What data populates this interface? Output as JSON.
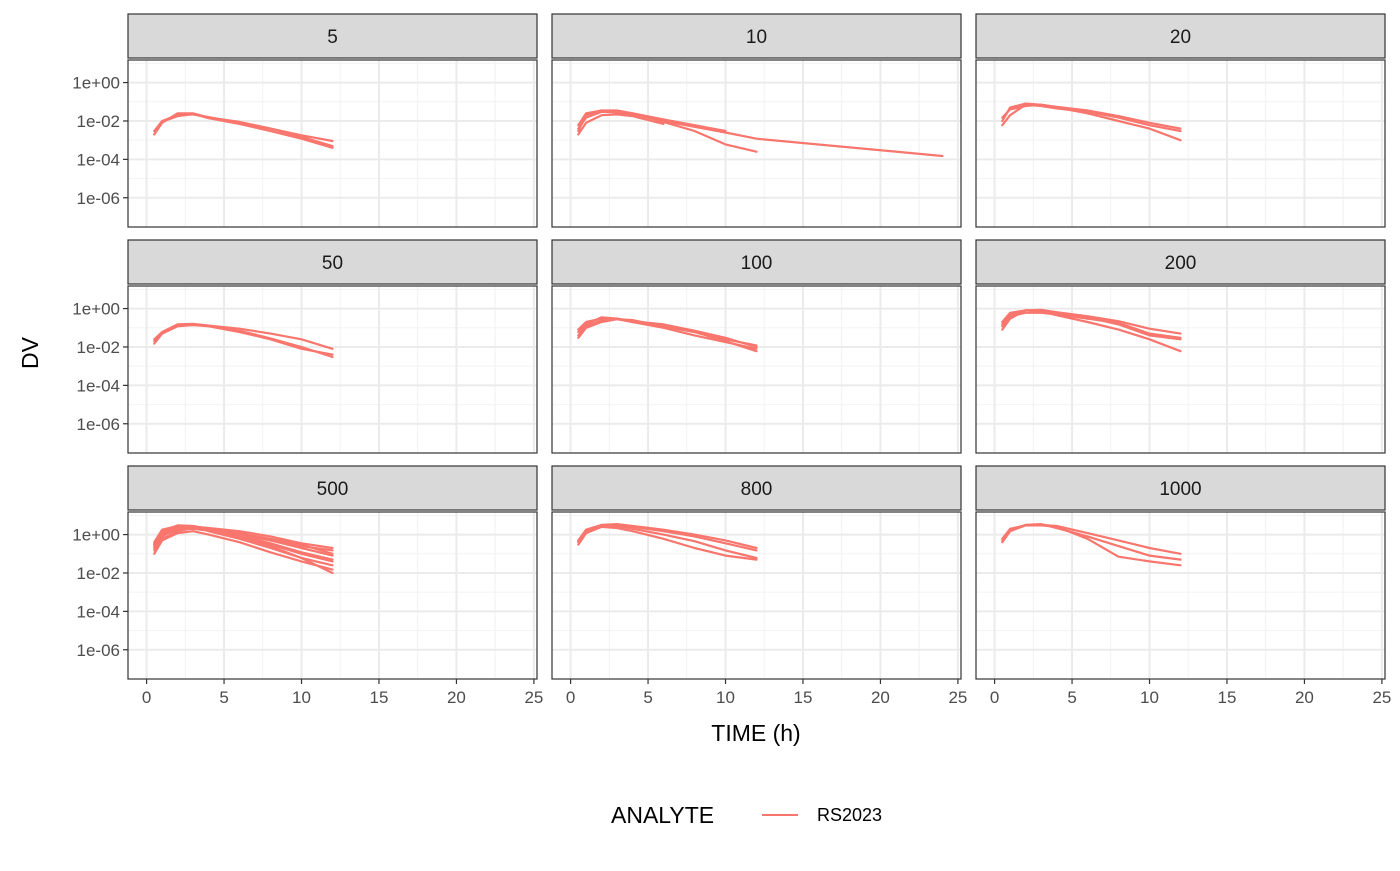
{
  "chart_data": {
    "type": "line",
    "facet_type": "wrap",
    "layout": {
      "rows": 3,
      "cols": 3
    },
    "xlabel": "TIME (h)",
    "ylabel": "DV",
    "y_scale": "log10",
    "xlim": [
      -1.2,
      25.2
    ],
    "ylim": [
      3e-08,
      15
    ],
    "x_ticks": [
      0,
      5,
      10,
      15,
      20,
      25
    ],
    "x_tick_labels": [
      "0",
      "5",
      "10",
      "15",
      "20",
      "25"
    ],
    "y_ticks": [
      1e-06,
      0.0001,
      0.01,
      1
    ],
    "y_tick_labels": [
      "1e-06",
      "1e-04",
      "1e-02",
      "1e+00"
    ],
    "grid": true,
    "theme": "bw",
    "series_color": "#F8766D",
    "legend": {
      "title": "ANALYTE",
      "position": "bottom",
      "entries": [
        {
          "label": "RS2023",
          "color": "#F8766D"
        }
      ]
    },
    "facets": [
      {
        "label": "5",
        "lines": [
          {
            "x": [
              0.5,
              1,
              2,
              3,
              4,
              6,
              8,
              10,
              12
            ],
            "y": [
              0.002,
              0.008,
              0.025,
              0.025,
              0.015,
              0.009,
              0.004,
              0.0018,
              0.0009
            ]
          },
          {
            "x": [
              0.5,
              1,
              2,
              3,
              4,
              6,
              8,
              10,
              12
            ],
            "y": [
              0.003,
              0.01,
              0.02,
              0.022,
              0.016,
              0.008,
              0.004,
              0.0015,
              0.0005
            ]
          },
          {
            "x": [
              0.5,
              1,
              2,
              3,
              4,
              6,
              8,
              10,
              12
            ],
            "y": [
              0.002,
              0.009,
              0.018,
              0.023,
              0.014,
              0.007,
              0.003,
              0.0012,
              0.0004
            ]
          }
        ]
      },
      {
        "label": "10",
        "lines": [
          {
            "x": [
              0.5,
              1,
              2,
              3,
              4,
              6,
              8,
              10,
              12,
              24
            ],
            "y": [
              0.004,
              0.015,
              0.03,
              0.028,
              0.022,
              0.01,
              0.005,
              0.0025,
              0.0012,
              0.00015
            ]
          },
          {
            "x": [
              0.5,
              1,
              2,
              3,
              4,
              6,
              8,
              10,
              12
            ],
            "y": [
              0.003,
              0.02,
              0.035,
              0.03,
              0.025,
              0.009,
              0.003,
              0.0006,
              0.00025
            ]
          },
          {
            "x": [
              0.5,
              1,
              2,
              3,
              4,
              6,
              8,
              10
            ],
            "y": [
              0.006,
              0.025,
              0.035,
              0.035,
              0.025,
              0.012,
              0.006,
              0.003
            ]
          },
          {
            "x": [
              0.5,
              1,
              2,
              3,
              4,
              6
            ],
            "y": [
              0.002,
              0.008,
              0.02,
              0.022,
              0.018,
              0.007
            ]
          }
        ]
      },
      {
        "label": "20",
        "lines": [
          {
            "x": [
              0.5,
              1,
              2,
              3,
              4,
              6,
              8,
              10,
              12
            ],
            "y": [
              0.006,
              0.02,
              0.07,
              0.06,
              0.045,
              0.03,
              0.015,
              0.006,
              0.003
            ]
          },
          {
            "x": [
              0.5,
              1,
              2,
              3,
              4,
              6,
              8,
              10,
              12
            ],
            "y": [
              0.01,
              0.05,
              0.08,
              0.07,
              0.05,
              0.025,
              0.01,
              0.004,
              0.001
            ]
          },
          {
            "x": [
              0.5,
              1,
              2,
              3,
              4,
              6,
              8,
              10,
              12
            ],
            "y": [
              0.015,
              0.04,
              0.06,
              0.07,
              0.055,
              0.035,
              0.018,
              0.008,
              0.004
            ]
          }
        ]
      },
      {
        "label": "50",
        "lines": [
          {
            "x": [
              0.5,
              1,
              2,
              3,
              4,
              6,
              8,
              10,
              12
            ],
            "y": [
              0.015,
              0.05,
              0.14,
              0.14,
              0.12,
              0.06,
              0.025,
              0.008,
              0.004
            ]
          },
          {
            "x": [
              0.5,
              1,
              2,
              3,
              4,
              6,
              8,
              10,
              12
            ],
            "y": [
              0.025,
              0.06,
              0.15,
              0.16,
              0.13,
              0.07,
              0.028,
              0.01,
              0.003
            ]
          },
          {
            "x": [
              0.5,
              1,
              2,
              3,
              4,
              6,
              8,
              10,
              12
            ],
            "y": [
              0.02,
              0.05,
              0.12,
              0.14,
              0.13,
              0.09,
              0.05,
              0.025,
              0.008
            ]
          }
        ]
      },
      {
        "label": "100",
        "lines": [
          {
            "x": [
              0.5,
              1,
              2,
              3,
              4,
              6,
              8,
              10,
              12
            ],
            "y": [
              0.06,
              0.15,
              0.35,
              0.3,
              0.2,
              0.1,
              0.04,
              0.018,
              0.008
            ]
          },
          {
            "x": [
              0.5,
              1,
              2,
              3,
              4,
              6,
              8,
              10,
              12
            ],
            "y": [
              0.03,
              0.1,
              0.2,
              0.28,
              0.25,
              0.12,
              0.06,
              0.025,
              0.012
            ]
          },
          {
            "x": [
              0.5,
              1,
              2,
              3,
              4,
              6,
              8,
              10,
              12
            ],
            "y": [
              0.04,
              0.12,
              0.25,
              0.3,
              0.22,
              0.15,
              0.07,
              0.03,
              0.01
            ]
          },
          {
            "x": [
              0.5,
              1,
              2,
              3,
              4,
              6,
              8,
              10,
              12
            ],
            "y": [
              0.08,
              0.2,
              0.3,
              0.28,
              0.2,
              0.12,
              0.06,
              0.02,
              0.006
            ]
          }
        ]
      },
      {
        "label": "200",
        "lines": [
          {
            "x": [
              0.5,
              1,
              2,
              3,
              4,
              6,
              8,
              10,
              12
            ],
            "y": [
              0.08,
              0.3,
              0.8,
              0.7,
              0.45,
              0.2,
              0.08,
              0.025,
              0.006
            ]
          },
          {
            "x": [
              0.5,
              1,
              2,
              3,
              4,
              6,
              8,
              10,
              12
            ],
            "y": [
              0.15,
              0.5,
              0.8,
              0.85,
              0.65,
              0.4,
              0.22,
              0.09,
              0.05
            ]
          },
          {
            "x": [
              0.5,
              1,
              2,
              3,
              4,
              6,
              8,
              10,
              12
            ],
            "y": [
              0.12,
              0.4,
              0.6,
              0.6,
              0.5,
              0.3,
              0.18,
              0.05,
              0.03
            ]
          },
          {
            "x": [
              0.5,
              1,
              2,
              3,
              4,
              6,
              8,
              10,
              12
            ],
            "y": [
              0.2,
              0.6,
              0.8,
              0.8,
              0.6,
              0.35,
              0.15,
              0.04,
              0.025
            ]
          }
        ]
      },
      {
        "label": "500",
        "lines": [
          {
            "x": [
              0.5,
              1,
              2,
              3,
              4,
              6,
              8,
              10,
              12
            ],
            "y": [
              0.15,
              1.0,
              2.8,
              2.5,
              1.8,
              1.1,
              0.5,
              0.25,
              0.15
            ]
          },
          {
            "x": [
              0.5,
              1,
              2,
              3,
              4,
              6,
              8,
              10,
              12
            ],
            "y": [
              0.3,
              1.5,
              3.0,
              2.8,
              2.0,
              0.9,
              0.35,
              0.12,
              0.05
            ]
          },
          {
            "x": [
              0.5,
              1,
              2,
              3,
              4,
              6,
              8,
              10,
              12
            ],
            "y": [
              0.2,
              0.8,
              2.5,
              2.6,
              1.5,
              0.6,
              0.2,
              0.06,
              0.025
            ]
          },
          {
            "x": [
              0.5,
              1,
              2,
              3,
              4,
              6,
              8,
              10,
              12
            ],
            "y": [
              0.1,
              0.5,
              1.2,
              1.5,
              1.0,
              0.4,
              0.12,
              0.04,
              0.015
            ]
          },
          {
            "x": [
              0.5,
              1,
              2,
              3,
              4,
              6,
              8,
              10,
              12
            ],
            "y": [
              0.4,
              1.8,
              2.8,
              2.6,
              2.2,
              1.5,
              0.8,
              0.35,
              0.2
            ]
          },
          {
            "x": [
              0.5,
              1,
              2,
              3,
              4,
              6,
              8,
              10,
              12
            ],
            "y": [
              0.25,
              1.2,
              2.2,
              2.3,
              1.9,
              1.0,
              0.5,
              0.2,
              0.08
            ]
          },
          {
            "x": [
              0.5,
              1,
              2,
              3,
              4,
              6,
              8,
              10,
              12
            ],
            "y": [
              0.3,
              0.9,
              1.8,
              2.0,
              1.6,
              0.8,
              0.3,
              0.1,
              0.04
            ]
          },
          {
            "x": [
              0.5,
              1,
              2,
              3,
              4,
              6,
              8,
              10,
              12
            ],
            "y": [
              0.2,
              0.6,
              1.5,
              2.2,
              1.8,
              1.2,
              0.6,
              0.3,
              0.1
            ]
          },
          {
            "x": [
              0.5,
              1,
              2,
              3,
              4,
              6,
              8,
              10,
              12
            ],
            "y": [
              0.35,
              1.4,
              2.6,
              2.4,
              1.7,
              0.7,
              0.25,
              0.06,
              0.01
            ]
          }
        ]
      },
      {
        "label": "800",
        "lines": [
          {
            "x": [
              0.5,
              1,
              2,
              3,
              4,
              6,
              8,
              10,
              12
            ],
            "y": [
              0.4,
              1.5,
              3.0,
              3.2,
              2.5,
              1.5,
              0.8,
              0.35,
              0.15
            ]
          },
          {
            "x": [
              0.5,
              1,
              2,
              3,
              4,
              6,
              8,
              10,
              12
            ],
            "y": [
              0.5,
              1.8,
              3.2,
              3.5,
              2.8,
              1.8,
              1.0,
              0.5,
              0.2
            ]
          },
          {
            "x": [
              0.5,
              1,
              2,
              3,
              4,
              6,
              8,
              10,
              12
            ],
            "y": [
              0.3,
              1.2,
              2.5,
              2.2,
              1.5,
              0.6,
              0.2,
              0.08,
              0.05
            ]
          },
          {
            "x": [
              0.5,
              1,
              2,
              3,
              4,
              6,
              8,
              10,
              12
            ],
            "y": [
              0.45,
              1.6,
              2.8,
              2.8,
              2.0,
              1.0,
              0.45,
              0.15,
              0.06
            ]
          }
        ]
      },
      {
        "label": "1000",
        "lines": [
          {
            "x": [
              0.5,
              1,
              2,
              3,
              4,
              6,
              8,
              10,
              12
            ],
            "y": [
              0.4,
              1.5,
              3.0,
              3.2,
              2.8,
              1.2,
              0.5,
              0.2,
              0.1
            ]
          },
          {
            "x": [
              0.5,
              1,
              2,
              3,
              4,
              6,
              8,
              10,
              12
            ],
            "y": [
              0.5,
              1.8,
              3.2,
              3.5,
              2.2,
              0.8,
              0.25,
              0.08,
              0.05
            ]
          },
          {
            "x": [
              0.5,
              1,
              2,
              3,
              4,
              6,
              8,
              10,
              12
            ],
            "y": [
              0.6,
              2.0,
              3.0,
              3.0,
              2.6,
              0.6,
              0.07,
              0.04,
              0.025
            ]
          }
        ]
      }
    ]
  }
}
